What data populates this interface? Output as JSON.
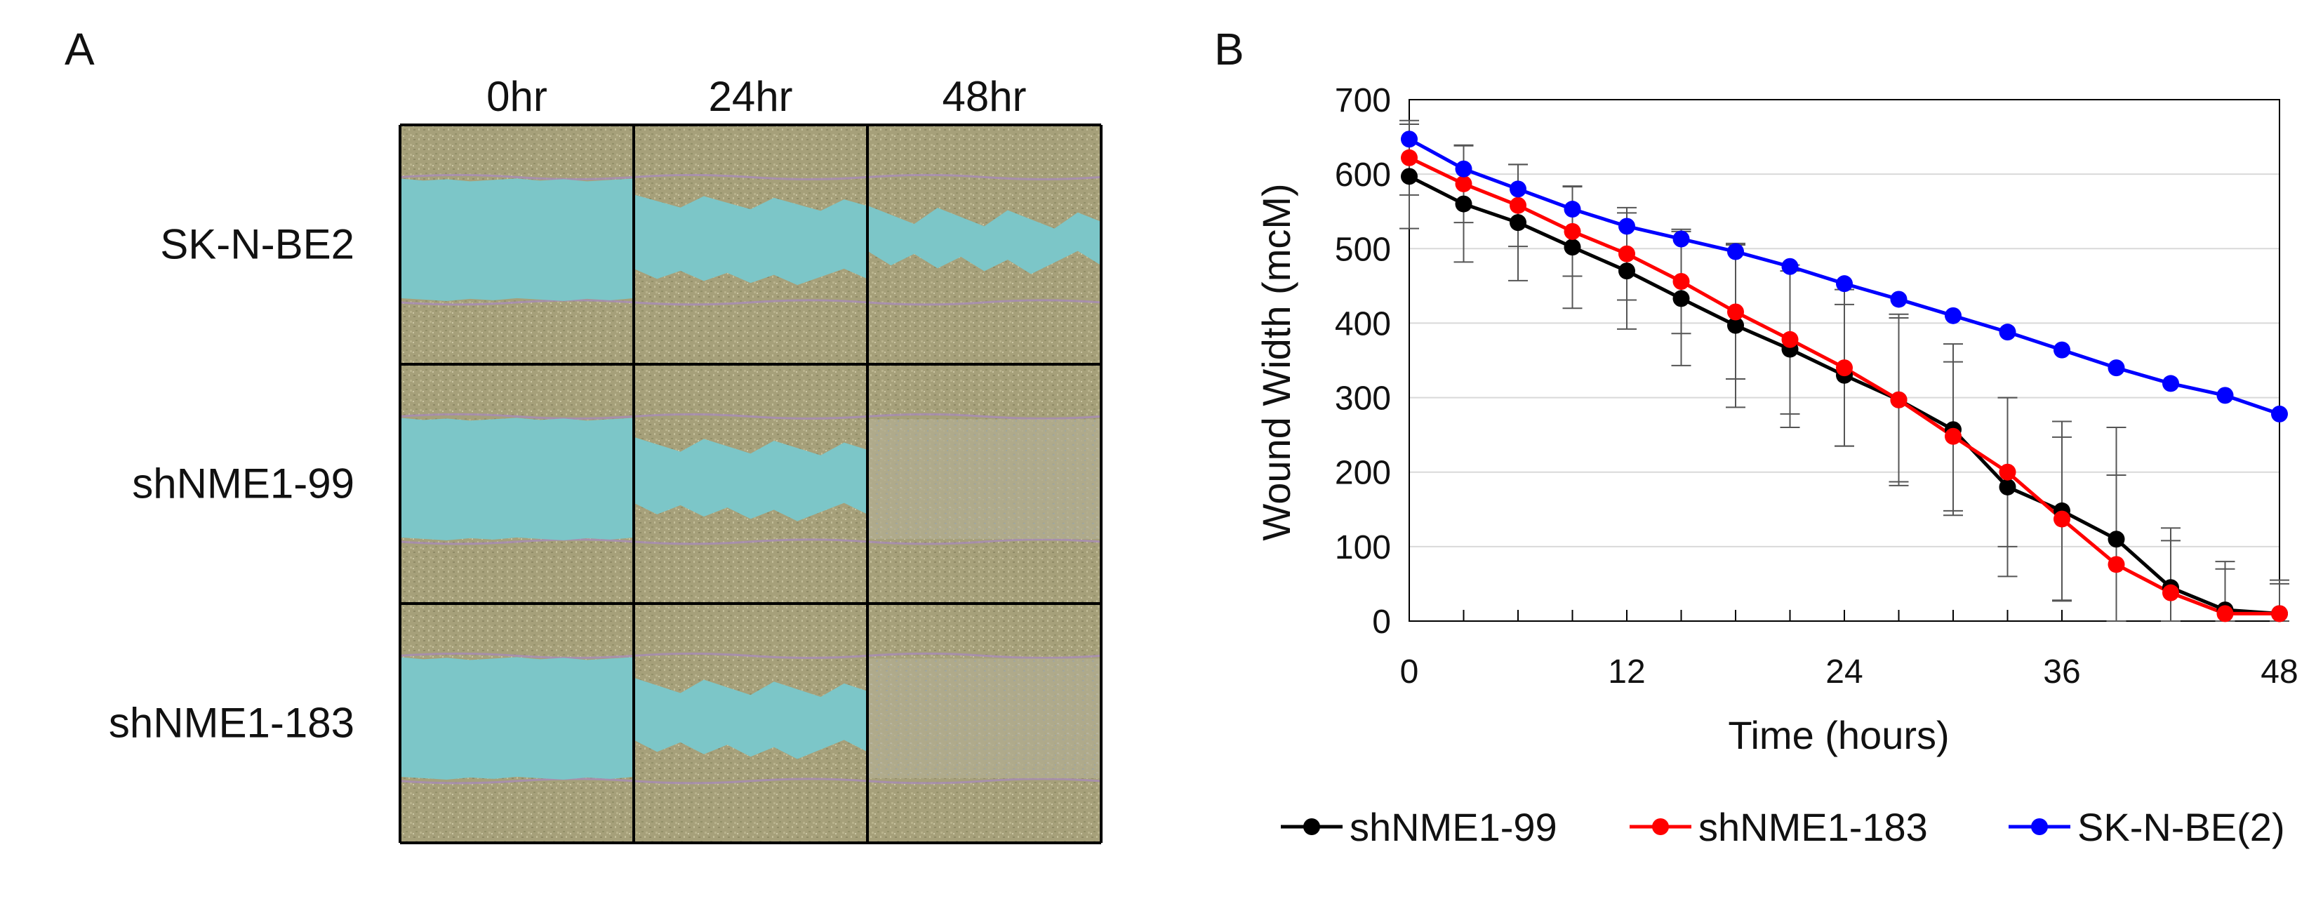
{
  "panels": {
    "a_letter": "A",
    "b_letter": "B"
  },
  "micrographs": {
    "columns": [
      "0hr",
      "24hr",
      "48hr"
    ],
    "rows": [
      {
        "label": "SK-N-BE2",
        "gap_fraction_remaining": [
          1.0,
          0.62,
          0.38
        ]
      },
      {
        "label": "shNME1-99",
        "gap_fraction_remaining": [
          1.0,
          0.55,
          0.03
        ]
      },
      {
        "label": "shNME1-183",
        "gap_fraction_remaining": [
          1.0,
          0.52,
          0.02
        ]
      }
    ],
    "colors": {
      "cells": "#a6a07a",
      "gap": "#7cc6c8",
      "edge": "#a78bb8",
      "grid": "#000000"
    }
  },
  "chart_data": {
    "type": "line",
    "title": "",
    "xlabel": "Time (hours)",
    "ylabel": "Wound Width (mcM)",
    "xlim": [
      0,
      48
    ],
    "ylim": [
      0,
      700
    ],
    "xticks": [
      0,
      12,
      24,
      36,
      48
    ],
    "yticks": [
      0,
      100,
      200,
      300,
      400,
      500,
      600,
      700
    ],
    "grid": "horizontal",
    "legend": "bottom",
    "x": [
      0,
      3,
      6,
      9,
      12,
      15,
      18,
      21,
      24,
      27,
      30,
      33,
      36,
      39,
      42,
      45,
      48
    ],
    "series": [
      {
        "name": "shNME1-99",
        "color": "#000000",
        "values": [
          597,
          560,
          535,
          502,
          470,
          433,
          397,
          365,
          330,
          297,
          257,
          180,
          148,
          110,
          45,
          15,
          10
        ],
        "errors": [
          70,
          78,
          78,
          82,
          78,
          90,
          110,
          105,
          95,
          115,
          115,
          120,
          120,
          150,
          80,
          65,
          45
        ]
      },
      {
        "name": "shNME1-183",
        "color": "#ff0000",
        "values": [
          622,
          587,
          558,
          523,
          493,
          456,
          415,
          378,
          340,
          297,
          248,
          200,
          137,
          76,
          38,
          10,
          10
        ],
        "errors": [
          50,
          52,
          55,
          60,
          62,
          70,
          90,
          100,
          105,
          110,
          100,
          100,
          110,
          120,
          70,
          60,
          40
        ]
      },
      {
        "name": "SK-N-BE(2)",
        "color": "#0000ff",
        "values": [
          647,
          607,
          580,
          553,
          530,
          513,
          496,
          476,
          453,
          432,
          410,
          388,
          364,
          340,
          319,
          303,
          278
        ]
      }
    ]
  }
}
